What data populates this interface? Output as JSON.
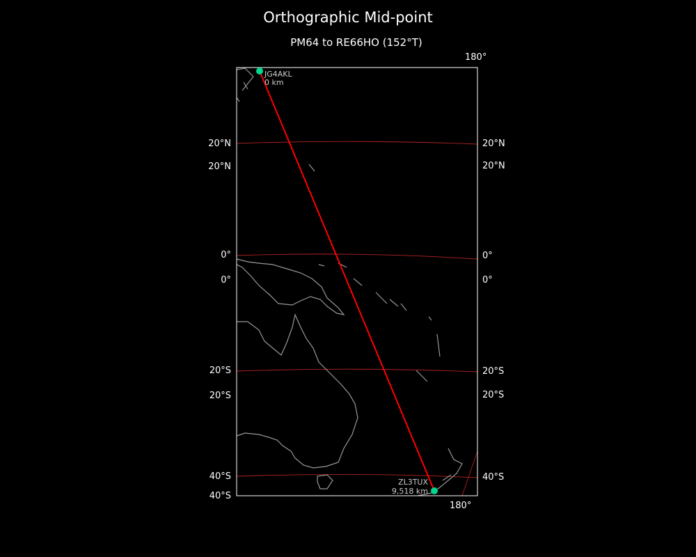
{
  "chart_data": {
    "type": "map",
    "title": "Orthographic Mid-point",
    "subtitle": "PM64 to RE66HO (152°T)",
    "projection": "orthographic",
    "colors": {
      "background": "#000000",
      "path": "#ff0000",
      "graticule": "#b22222",
      "coastline": "#999999",
      "marker": "#00d690",
      "frame": "#ffffff"
    },
    "lat_labels_left": [
      "20°N",
      "20°N",
      "0°",
      "0°",
      "20°S",
      "20°S",
      "40°S",
      "40°S"
    ],
    "lat_labels_right": [
      "20°N",
      "20°N",
      "0°",
      "0°",
      "20°S",
      "20°S",
      "40°S"
    ],
    "lon_labels": [
      "180°",
      "180°"
    ],
    "stations": [
      {
        "call": "JG4AKL",
        "distance": "0 km"
      },
      {
        "call": "ZL3TUX",
        "distance": "9,518 km"
      }
    ]
  }
}
